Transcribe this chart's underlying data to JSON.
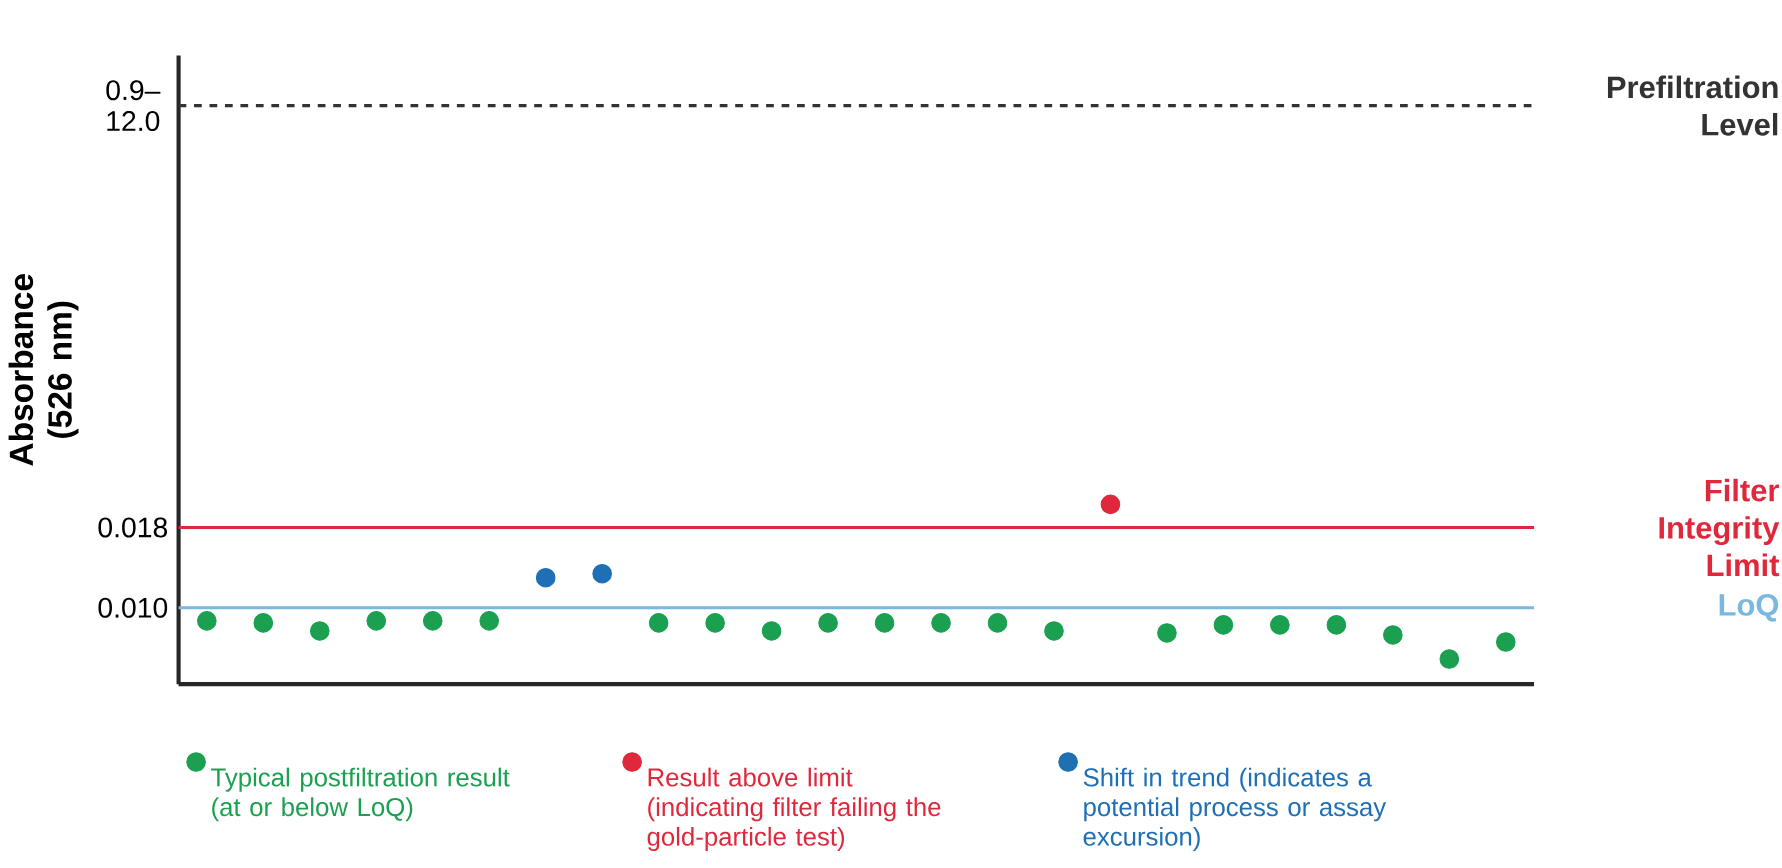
{
  "chart_data": {
    "type": "scatter",
    "ylabel": "Absorbance (526 nm)",
    "categories": [
      null,
      null,
      null,
      null,
      null,
      null,
      null,
      null,
      null,
      null,
      null,
      null,
      null,
      null,
      null,
      null,
      null,
      null,
      null,
      null,
      null,
      null,
      null,
      null
    ],
    "ylim": [
      0.0024,
      0.065
    ],
    "yticks": [
      {
        "value": 0.01,
        "label": "0.010"
      },
      {
        "value": 0.018,
        "label": "0.018"
      },
      {
        "value": 0.06,
        "label": "0.9–12.0"
      }
    ],
    "tick_labels": "y",
    "marker": "circle",
    "legend": "bottom",
    "series": [
      {
        "name": "Typical postfiltration result (at or below LoQ)",
        "color": "#1aa050",
        "values": [
          0.0087,
          0.0085,
          0.0077,
          0.0087,
          0.0087,
          0.0087,
          null,
          null,
          0.0085,
          0.0085,
          0.0077,
          0.0085,
          0.0085,
          0.0085,
          0.0085,
          0.0077,
          null,
          0.0075,
          0.0083,
          0.0083,
          0.0083,
          0.0073,
          0.0049,
          0.0066
        ]
      },
      {
        "name": "Result above limit (indicating filter failing the gold-particle test)",
        "color": "#e0283c",
        "values": [
          null,
          null,
          null,
          null,
          null,
          null,
          null,
          null,
          null,
          null,
          null,
          null,
          null,
          null,
          null,
          null,
          0.0203,
          null,
          null,
          null,
          null,
          null,
          null,
          null
        ]
      },
      {
        "name": "Shift in trend (indicates a potential process or assay excursion)",
        "color": "#1f6fb5",
        "values": [
          null,
          null,
          null,
          null,
          null,
          null,
          0.013,
          0.0134,
          null,
          null,
          null,
          null,
          null,
          null,
          null,
          null,
          null,
          null,
          null,
          null,
          null,
          null,
          null,
          null
        ]
      }
    ],
    "ref_lines": [
      {
        "axis": "y",
        "value": 0.06,
        "label": "Prefiltration Level",
        "color": "#333333",
        "line_style": "dashed"
      },
      {
        "axis": "y",
        "value": 0.018,
        "label": "Filter Integrity Limit",
        "color": "#e0283c",
        "line_style": "solid"
      },
      {
        "axis": "y",
        "value": 0.01,
        "label": "LoQ",
        "color": "#7ab8e0",
        "line_style": "solid"
      }
    ]
  }
}
